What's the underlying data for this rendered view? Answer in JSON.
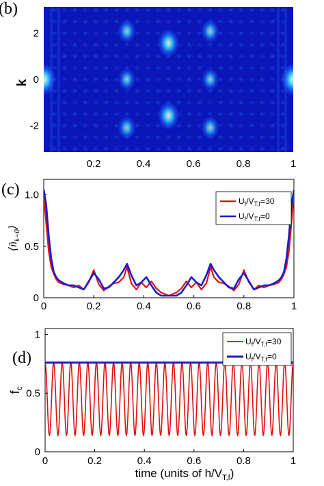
{
  "chart_data": [
    {
      "panel": "(b)",
      "type": "heatmap",
      "ylabel": "k",
      "xlim": [
        0,
        1
      ],
      "ylim": [
        -3.14,
        3.14
      ],
      "x_ticks": [
        "0.2",
        "0.4",
        "0.6",
        "0.8",
        "1"
      ],
      "y_ticks": [
        "2",
        "0",
        "-2"
      ],
      "bright_spots": [
        {
          "x": 0.0,
          "y": 0.0,
          "v": 1.0
        },
        {
          "x": 1.0,
          "y": 0.0,
          "v": 1.0
        },
        {
          "x": 0.5,
          "y": 1.57,
          "v": 0.75
        },
        {
          "x": 0.5,
          "y": -1.57,
          "v": 0.75
        },
        {
          "x": 0.333,
          "y": 2.09,
          "v": 0.5
        },
        {
          "x": 0.333,
          "y": 0.0,
          "v": 0.45
        },
        {
          "x": 0.333,
          "y": -2.09,
          "v": 0.5
        },
        {
          "x": 0.667,
          "y": 2.09,
          "v": 0.5
        },
        {
          "x": 0.667,
          "y": 0.0,
          "v": 0.45
        },
        {
          "x": 0.667,
          "y": -2.09,
          "v": 0.5
        }
      ],
      "colors": {
        "low": "#0a14a0",
        "mid": "#1e7dff",
        "high": "#ffe7b0"
      }
    },
    {
      "panel": "(c)",
      "type": "line",
      "ylabel": "⟨ñk=0⟩",
      "xlim": [
        0,
        1
      ],
      "ylim": [
        0,
        1.15
      ],
      "x_ticks": [
        "0",
        "0.2",
        "0.4",
        "0.6",
        "0.8",
        "1"
      ],
      "y_ticks": [
        "0",
        "0.5",
        "1.0"
      ],
      "legend_position": "top-right",
      "x": [
        0,
        0.01,
        0.02,
        0.03,
        0.04,
        0.05,
        0.06,
        0.08,
        0.1,
        0.12,
        0.14,
        0.16,
        0.18,
        0.2,
        0.22,
        0.24,
        0.26,
        0.28,
        0.3,
        0.32,
        0.333,
        0.35,
        0.37,
        0.39,
        0.41,
        0.43,
        0.45,
        0.47,
        0.5,
        0.53,
        0.55,
        0.57,
        0.59,
        0.61,
        0.63,
        0.65,
        0.667,
        0.68,
        0.7,
        0.72,
        0.74,
        0.76,
        0.78,
        0.8,
        0.82,
        0.84,
        0.86,
        0.88,
        0.9,
        0.92,
        0.94,
        0.95,
        0.96,
        0.97,
        0.98,
        0.99,
        1.0
      ],
      "series": [
        {
          "name": "U_f/V_T,f=30",
          "color": "#e01010",
          "values": [
            1.0,
            0.72,
            0.45,
            0.3,
            0.23,
            0.18,
            0.15,
            0.13,
            0.12,
            0.1,
            0.12,
            0.08,
            0.15,
            0.27,
            0.13,
            0.07,
            0.11,
            0.14,
            0.15,
            0.2,
            0.3,
            0.14,
            0.08,
            0.15,
            0.1,
            0.16,
            0.09,
            0.05,
            0.02,
            0.05,
            0.09,
            0.16,
            0.1,
            0.15,
            0.08,
            0.14,
            0.3,
            0.2,
            0.15,
            0.14,
            0.11,
            0.07,
            0.13,
            0.27,
            0.15,
            0.08,
            0.12,
            0.1,
            0.12,
            0.13,
            0.15,
            0.18,
            0.23,
            0.3,
            0.45,
            0.72,
            1.0
          ]
        },
        {
          "name": "U_f/V_T,f=0",
          "color": "#1a1ad0",
          "values": [
            1.05,
            0.9,
            0.6,
            0.38,
            0.25,
            0.2,
            0.17,
            0.14,
            0.12,
            0.12,
            0.1,
            0.08,
            0.16,
            0.24,
            0.18,
            0.09,
            0.1,
            0.15,
            0.2,
            0.27,
            0.33,
            0.22,
            0.12,
            0.15,
            0.2,
            0.12,
            0.05,
            0.02,
            0.02,
            0.02,
            0.05,
            0.12,
            0.2,
            0.15,
            0.12,
            0.22,
            0.33,
            0.27,
            0.2,
            0.15,
            0.1,
            0.09,
            0.18,
            0.24,
            0.16,
            0.08,
            0.1,
            0.12,
            0.12,
            0.14,
            0.17,
            0.2,
            0.25,
            0.38,
            0.6,
            0.9,
            1.05
          ]
        }
      ]
    },
    {
      "panel": "(d)",
      "type": "line",
      "ylabel": "f_c",
      "xlabel": "time (units of h/V_T,f)",
      "xlim": [
        0,
        1
      ],
      "ylim": [
        0,
        1.05
      ],
      "x_ticks": [
        "0",
        "0.2",
        "0.4",
        "0.6",
        "0.8",
        "1"
      ],
      "y_ticks": [
        "0",
        "0.5",
        "1"
      ],
      "legend_position": "top-right",
      "series": [
        {
          "name": "U_f/V_T,f=30",
          "color": "#e01010",
          "form": "oscillation",
          "min": 0.14,
          "max": 0.76,
          "periods": 29
        },
        {
          "name": "U_f/V_T,f=0",
          "color": "#1a1ad0",
          "form": "constant",
          "value": 0.76
        }
      ]
    }
  ]
}
